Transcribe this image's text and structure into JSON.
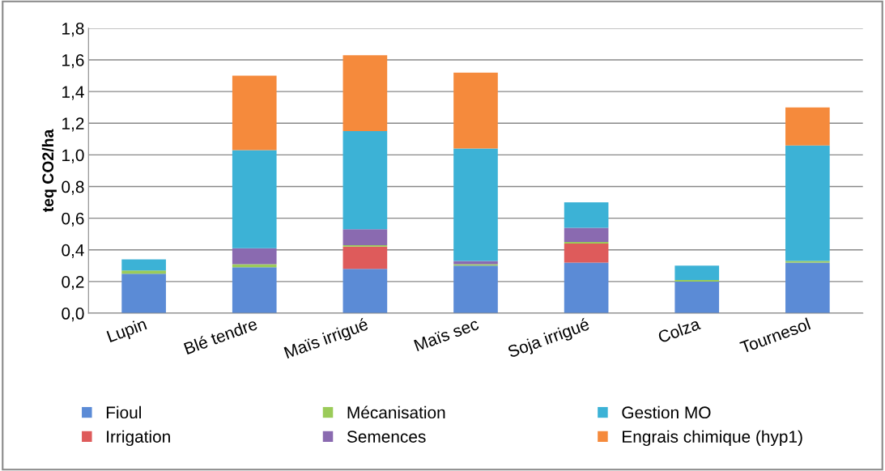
{
  "chart_data": {
    "type": "bar",
    "stacked": true,
    "ylabel": "teq CO2/ha",
    "categories": [
      "Lupin",
      "Blé tendre",
      "Maïs irrigué",
      "Maïs sec",
      "Soja irrigué",
      "Colza",
      "Tournesol"
    ],
    "series": [
      {
        "name": "Fioul",
        "color": "#5b8bd6",
        "values": [
          0.25,
          0.29,
          0.28,
          0.3,
          0.32,
          0.2,
          0.32
        ]
      },
      {
        "name": "Irrigation",
        "color": "#de5b5b",
        "values": [
          0,
          0,
          0.14,
          0,
          0.12,
          0,
          0
        ]
      },
      {
        "name": "Mécanisation",
        "color": "#9bcb59",
        "values": [
          0.02,
          0.02,
          0.01,
          0.01,
          0.01,
          0.01,
          0.01
        ]
      },
      {
        "name": "Semences",
        "color": "#8a6ab0",
        "values": [
          0,
          0.1,
          0.1,
          0.02,
          0.09,
          0,
          0
        ]
      },
      {
        "name": "Gestion MO",
        "color": "#3cb2d6",
        "values": [
          0.07,
          0.62,
          0.62,
          0.71,
          0.16,
          0.09,
          0.73
        ]
      },
      {
        "name": "Engrais chimique (hyp1)",
        "color": "#f58a3c",
        "values": [
          0,
          0.47,
          0.48,
          0.48,
          0,
          0,
          0.24
        ]
      }
    ],
    "ylim": [
      0,
      1.8
    ],
    "yticks": [
      {
        "value": 0,
        "label": "0,0"
      },
      {
        "value": 0.2,
        "label": "0,2"
      },
      {
        "value": 0.4,
        "label": "0,4"
      },
      {
        "value": 0.6,
        "label": "0,6"
      },
      {
        "value": 0.8,
        "label": "0,8"
      },
      {
        "value": 1.0,
        "label": "1,0"
      },
      {
        "value": 1.2,
        "label": "1,2"
      },
      {
        "value": 1.4,
        "label": "1,4"
      },
      {
        "value": 1.6,
        "label": "1,6"
      },
      {
        "value": 1.8,
        "label": "1,8"
      }
    ],
    "grid": "y",
    "legend": "bottom"
  }
}
